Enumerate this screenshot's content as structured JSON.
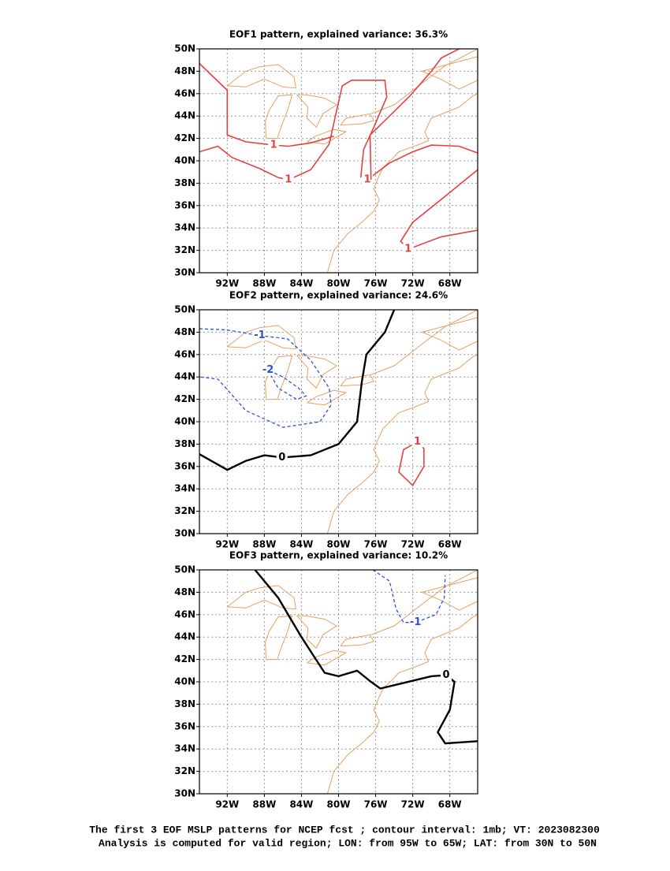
{
  "panels": [
    {
      "title": "EOF1 pattern, explained variance: 36.3%",
      "contour_labels": [
        "1",
        "1",
        "1",
        "1"
      ]
    },
    {
      "title": "EOF2 pattern, explained variance: 24.6%",
      "contour_labels": [
        "-1",
        "-2",
        "0",
        "1"
      ]
    },
    {
      "title": "EOF3 pattern, explained variance: 10.2%",
      "contour_labels": [
        "0",
        "-1"
      ]
    }
  ],
  "axes": {
    "lon_lim": [
      -95,
      -65
    ],
    "lat_lim": [
      30,
      50
    ],
    "lon_ticks": [
      {
        "value": -92,
        "label": "92W"
      },
      {
        "value": -88,
        "label": "88W"
      },
      {
        "value": -84,
        "label": "84W"
      },
      {
        "value": -80,
        "label": "80W"
      },
      {
        "value": -76,
        "label": "76W"
      },
      {
        "value": -72,
        "label": "72W"
      },
      {
        "value": -68,
        "label": "68W"
      }
    ],
    "lat_ticks": [
      {
        "value": 30,
        "label": "30N"
      },
      {
        "value": 32,
        "label": "32N"
      },
      {
        "value": 34,
        "label": "34N"
      },
      {
        "value": 36,
        "label": "36N"
      },
      {
        "value": 38,
        "label": "38N"
      },
      {
        "value": 40,
        "label": "40N"
      },
      {
        "value": 42,
        "label": "42N"
      },
      {
        "value": 44,
        "label": "44N"
      },
      {
        "value": 46,
        "label": "46N"
      },
      {
        "value": 48,
        "label": "48N"
      },
      {
        "value": 50,
        "label": "50N"
      }
    ],
    "grid": true
  },
  "caption": [
    "The first 3 EOF MSLP patterns for NCEP fcst ; contour interval: 1mb; VT: 2023082300",
    "Analysis is computed for valid region; LON: from 95W to 65W; LAT: from 30N to 50N"
  ]
}
